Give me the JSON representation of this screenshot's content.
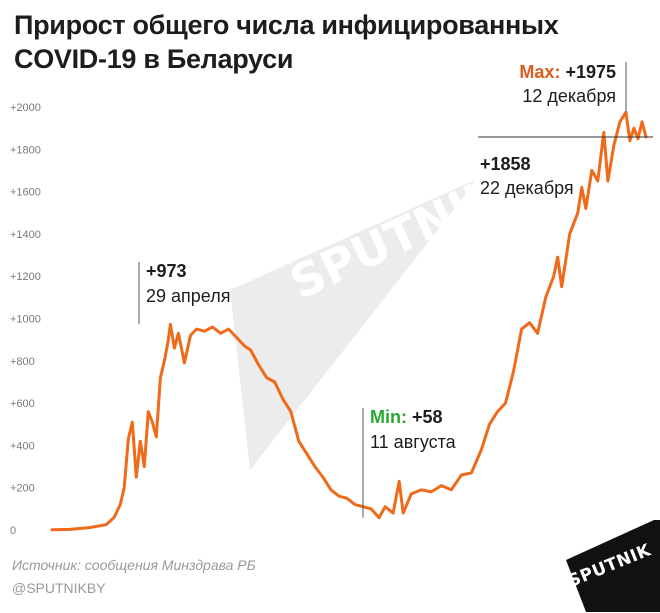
{
  "title_line1": "Прирост общего числа инфицированных",
  "title_line2": "COVID-19 в Беларуси",
  "source": "Источник: сообщения Минздрава РБ",
  "twitter": "@SPUTNIKBY",
  "logo": "SPUTNIK",
  "watermark": "SPUTNIK",
  "colors": {
    "line": "#f06a1a",
    "max_label": "#e05a20",
    "min_label": "#2aa832",
    "text": "#1d1d1d",
    "axis_text": "#7a7a7a",
    "watermark": "#e6e6e6",
    "logo_bg": "#111111"
  },
  "chart_data": {
    "type": "line",
    "title": "Прирост общего числа инфицированных COVID-19 в Беларуси",
    "xlabel": "",
    "ylabel": "",
    "ylim": [
      0,
      2100
    ],
    "yticks": [
      {
        "value": 0,
        "label": "0"
      },
      {
        "value": 200,
        "label": "+200"
      },
      {
        "value": 400,
        "label": "+400"
      },
      {
        "value": 600,
        "label": "+600"
      },
      {
        "value": 800,
        "label": "+800"
      },
      {
        "value": 1000,
        "label": "+1000"
      },
      {
        "value": 1200,
        "label": "+1200"
      },
      {
        "value": 1400,
        "label": "+1400"
      },
      {
        "value": 1600,
        "label": "+1600"
      },
      {
        "value": 1800,
        "label": "+1800"
      },
      {
        "value": 2000,
        "label": "+2000"
      }
    ],
    "x_start": "2020-03-01",
    "x_end": "2020-12-24",
    "grid": false,
    "series": [
      {
        "points": [
          [
            "2020-03-01",
            1
          ],
          [
            "2020-03-10",
            3
          ],
          [
            "2020-03-20",
            12
          ],
          [
            "2020-03-28",
            25
          ],
          [
            "2020-04-01",
            60
          ],
          [
            "2020-04-04",
            120
          ],
          [
            "2020-04-06",
            200
          ],
          [
            "2020-04-08",
            430
          ],
          [
            "2020-04-10",
            510
          ],
          [
            "2020-04-12",
            250
          ],
          [
            "2020-04-14",
            420
          ],
          [
            "2020-04-16",
            300
          ],
          [
            "2020-04-18",
            560
          ],
          [
            "2020-04-20",
            510
          ],
          [
            "2020-04-22",
            440
          ],
          [
            "2020-04-24",
            720
          ],
          [
            "2020-04-26",
            800
          ],
          [
            "2020-04-28",
            900
          ],
          [
            "2020-04-29",
            973
          ],
          [
            "2020-05-01",
            860
          ],
          [
            "2020-05-03",
            930
          ],
          [
            "2020-05-06",
            790
          ],
          [
            "2020-05-09",
            920
          ],
          [
            "2020-05-12",
            950
          ],
          [
            "2020-05-16",
            940
          ],
          [
            "2020-05-20",
            960
          ],
          [
            "2020-05-24",
            930
          ],
          [
            "2020-05-28",
            950
          ],
          [
            "2020-06-01",
            910
          ],
          [
            "2020-06-05",
            870
          ],
          [
            "2020-06-08",
            850
          ],
          [
            "2020-06-12",
            780
          ],
          [
            "2020-06-16",
            720
          ],
          [
            "2020-06-20",
            700
          ],
          [
            "2020-06-24",
            620
          ],
          [
            "2020-06-28",
            560
          ],
          [
            "2020-07-02",
            420
          ],
          [
            "2020-07-06",
            360
          ],
          [
            "2020-07-10",
            300
          ],
          [
            "2020-07-14",
            250
          ],
          [
            "2020-07-18",
            190
          ],
          [
            "2020-07-22",
            160
          ],
          [
            "2020-07-26",
            150
          ],
          [
            "2020-07-30",
            120
          ],
          [
            "2020-08-03",
            110
          ],
          [
            "2020-08-07",
            100
          ],
          [
            "2020-08-11",
            58
          ],
          [
            "2020-08-14",
            110
          ],
          [
            "2020-08-18",
            80
          ],
          [
            "2020-08-21",
            230
          ],
          [
            "2020-08-23",
            80
          ],
          [
            "2020-08-27",
            170
          ],
          [
            "2020-09-01",
            190
          ],
          [
            "2020-09-06",
            180
          ],
          [
            "2020-09-11",
            210
          ],
          [
            "2020-09-16",
            190
          ],
          [
            "2020-09-21",
            260
          ],
          [
            "2020-09-26",
            270
          ],
          [
            "2020-10-01",
            380
          ],
          [
            "2020-10-05",
            500
          ],
          [
            "2020-10-09",
            560
          ],
          [
            "2020-10-13",
            600
          ],
          [
            "2020-10-17",
            750
          ],
          [
            "2020-10-21",
            950
          ],
          [
            "2020-10-25",
            980
          ],
          [
            "2020-10-29",
            930
          ],
          [
            "2020-11-02",
            1100
          ],
          [
            "2020-11-06",
            1200
          ],
          [
            "2020-11-08",
            1290
          ],
          [
            "2020-11-10",
            1150
          ],
          [
            "2020-11-14",
            1400
          ],
          [
            "2020-11-18",
            1500
          ],
          [
            "2020-11-20",
            1620
          ],
          [
            "2020-11-22",
            1520
          ],
          [
            "2020-11-25",
            1700
          ],
          [
            "2020-11-28",
            1650
          ],
          [
            "2020-12-01",
            1880
          ],
          [
            "2020-12-03",
            1650
          ],
          [
            "2020-12-06",
            1820
          ],
          [
            "2020-12-09",
            1930
          ],
          [
            "2020-12-12",
            1975
          ],
          [
            "2020-12-14",
            1840
          ],
          [
            "2020-12-16",
            1900
          ],
          [
            "2020-12-18",
            1850
          ],
          [
            "2020-12-20",
            1930
          ],
          [
            "2020-12-22",
            1858
          ]
        ]
      }
    ],
    "annotations": [
      {
        "prefix": "",
        "value": "+973",
        "date": "29 апреля",
        "x": "2020-04-29",
        "y": 973,
        "color": "text"
      },
      {
        "prefix": "Min:",
        "value": "+58",
        "date": "11 августа",
        "x": "2020-08-11",
        "y": 58,
        "color": "min_label"
      },
      {
        "prefix": "Max:",
        "value": "+1975",
        "date": "12 декабря",
        "x": "2020-12-12",
        "y": 1975,
        "color": "max_label"
      },
      {
        "prefix": "",
        "value": "+1858",
        "date": "22 декабря",
        "x": "2020-12-22",
        "y": 1858,
        "color": "text"
      }
    ]
  }
}
